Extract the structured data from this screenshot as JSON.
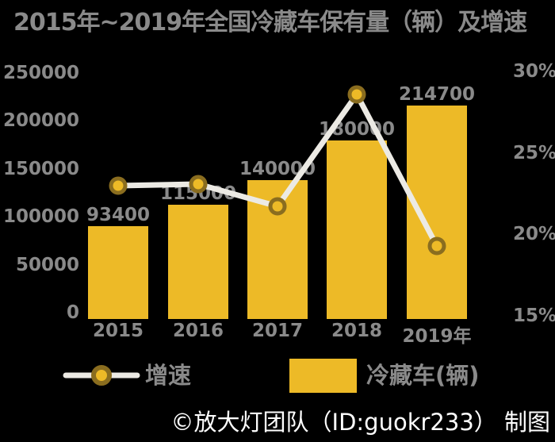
{
  "chart_data": {
    "type": "bar",
    "subtype": "combo-bar-line-dual-axis",
    "title": "2015年~2019年全国冷藏车保有量（辆）及增速",
    "categories": [
      "2015",
      "2016",
      "2017",
      "2018",
      "2019年"
    ],
    "series": [
      {
        "name": "冷藏车(辆)",
        "type": "bar",
        "axis": "left",
        "values": [
          93400,
          115000,
          140000,
          180000,
          214700
        ],
        "data_labels": [
          "93400",
          "115000",
          "140000",
          "180000",
          "214700"
        ]
      },
      {
        "name": "增速",
        "type": "line",
        "axis": "right",
        "values_percent": [
          23.0,
          23.1,
          21.7,
          28.6,
          19.3
        ]
      }
    ],
    "left_axis": {
      "min": 0,
      "max": 250000,
      "ticks": [
        "0",
        "50000",
        "100000",
        "150000",
        "200000",
        "250000"
      ]
    },
    "right_axis": {
      "min": 15,
      "max": 30,
      "ticks": [
        "15%",
        "20%",
        "25%",
        "30%"
      ]
    },
    "grid": false,
    "legend_position": "bottom"
  },
  "legend": {
    "growth_label": "增速",
    "trucks_label": "冷藏车(辆)"
  },
  "footer": {
    "credit": "©放大灯团队（ID:guokr233） 制图"
  },
  "colors": {
    "background": "#000000",
    "bar": "#EDBA27",
    "line": "#ECEAE4",
    "marker_ring": "#8A6D1F",
    "text_gray": "#8A8A8A",
    "footer_text": "#FFFFFF"
  }
}
